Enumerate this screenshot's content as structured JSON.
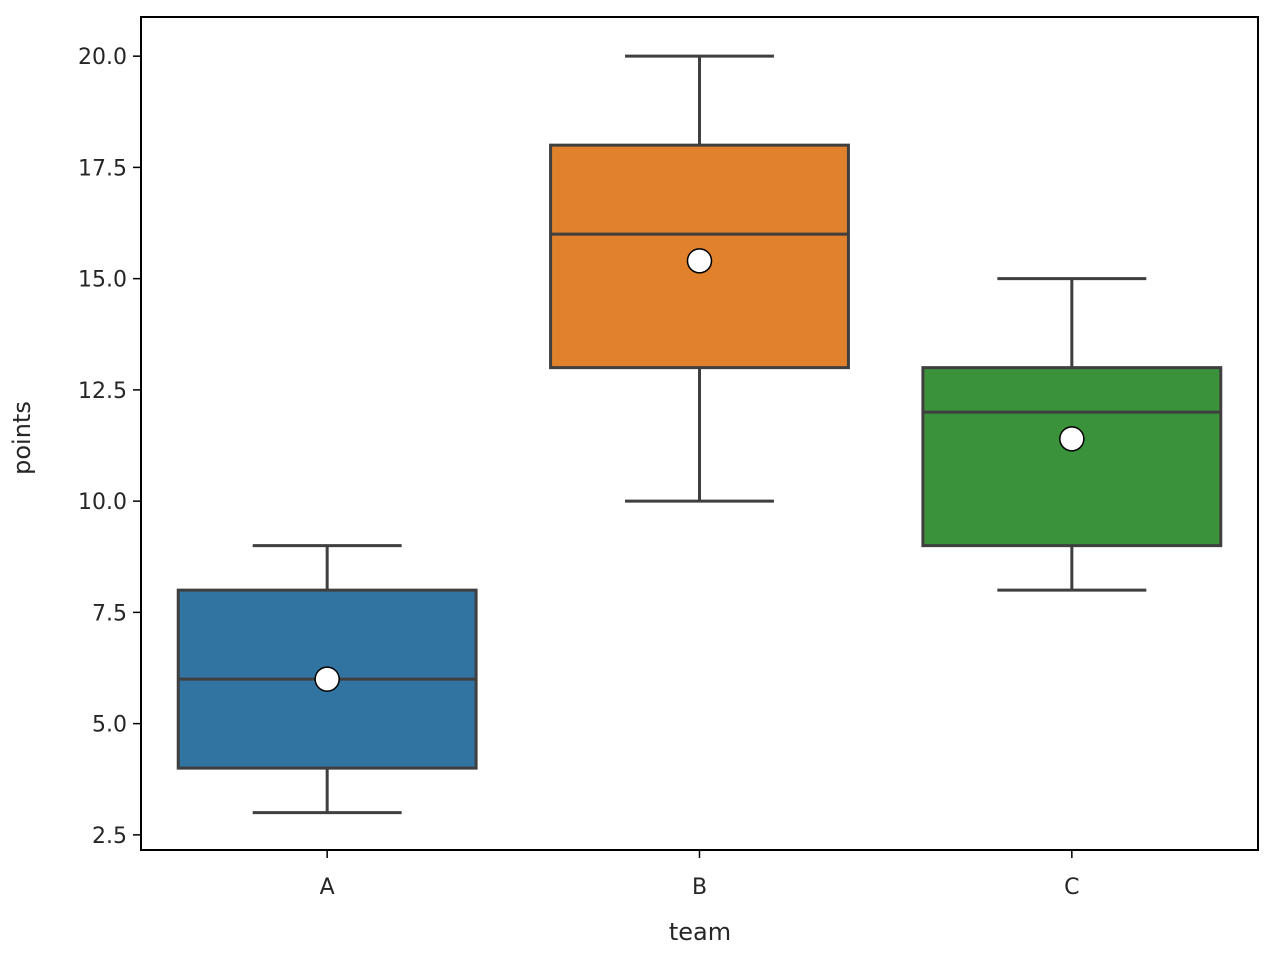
{
  "chart_data": {
    "type": "box",
    "title": "",
    "xlabel": "team",
    "ylabel": "points",
    "categories": [
      "A",
      "B",
      "C"
    ],
    "colors": [
      "#3274a1",
      "#e1812c",
      "#3a923a"
    ],
    "series": [
      {
        "name": "A",
        "whisker_low": 3,
        "q1": 4,
        "median": 6,
        "q3": 8,
        "whisker_high": 9,
        "mean": 6.0
      },
      {
        "name": "B",
        "whisker_low": 10,
        "q1": 13,
        "median": 16,
        "q3": 18,
        "whisker_high": 20,
        "mean": 15.4
      },
      {
        "name": "C",
        "whisker_low": 8,
        "q1": 9,
        "median": 12,
        "q3": 13,
        "whisker_high": 15,
        "mean": 11.4
      }
    ],
    "yticks": [
      "2.5",
      "5.0",
      "7.5",
      "10.0",
      "12.5",
      "15.0",
      "17.5",
      "20.0"
    ],
    "ytick_values": [
      2.5,
      5.0,
      7.5,
      10.0,
      12.5,
      15.0,
      17.5,
      20.0
    ],
    "ylim": [
      2.16,
      20.88
    ],
    "grid": false,
    "legend": null,
    "showmeans": true,
    "mean_marker": "white circle"
  }
}
